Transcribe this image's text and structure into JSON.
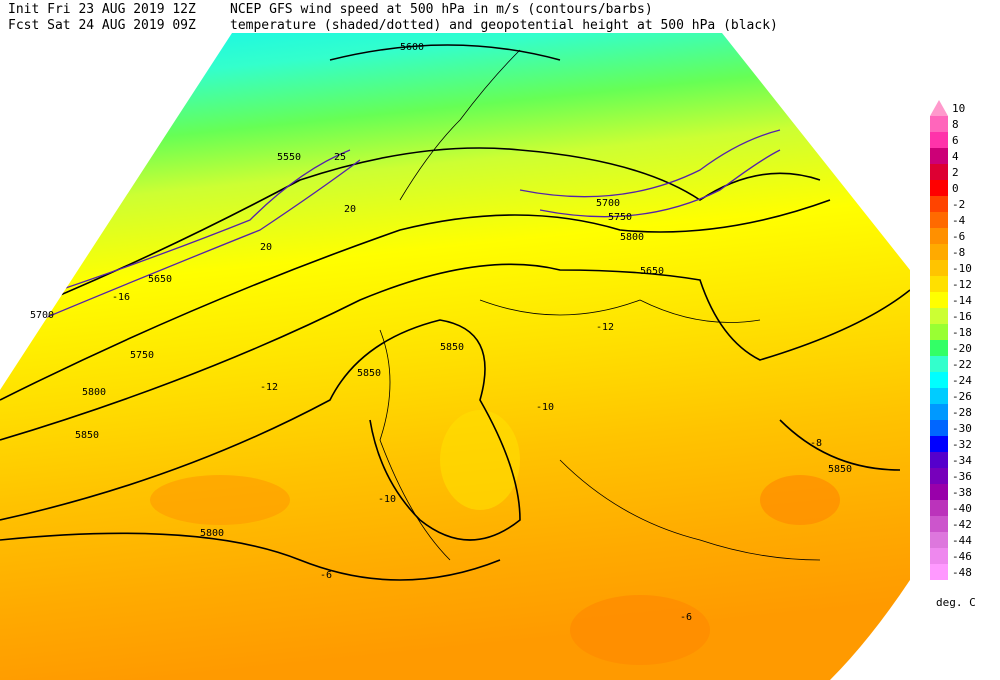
{
  "header": {
    "init": "Init  Fri 23 AUG 2019 12Z",
    "fcst": "Fcst Sat 24 AUG 2019 09Z",
    "line1": "NCEP GFS wind speed at 500 hPa in m/s (contours/barbs)",
    "line2": "temperature (shaded/dotted) and geopotential height at 500 hPa (black)"
  },
  "colorbar": {
    "levels": [
      10,
      8,
      6,
      4,
      2,
      0,
      -2,
      -4,
      -6,
      -8,
      -10,
      -12,
      -14,
      -16,
      -18,
      -20,
      -22,
      -24,
      -26,
      -28,
      -30,
      -32,
      -34,
      -36,
      -38,
      -40,
      -42,
      -44,
      -46,
      -48
    ],
    "colors": [
      "#ff99cc",
      "#ff66bb",
      "#ff33aa",
      "#cc0077",
      "#dd0033",
      "#ff0000",
      "#ff4400",
      "#ff6a00",
      "#ff9000",
      "#ffaa00",
      "#ffc400",
      "#ffe000",
      "#ffff00",
      "#ccff33",
      "#99ff33",
      "#33ff66",
      "#33ffcc",
      "#00ffff",
      "#00ccff",
      "#0099ff",
      "#0066ff",
      "#0000ff",
      "#5500cc",
      "#7700bb",
      "#9900aa",
      "#bb33bb",
      "#cc55cc",
      "#dd77dd",
      "#ee88ee",
      "#ff99ff"
    ],
    "unit": "deg. C"
  },
  "map": {
    "labels": [
      "5600",
      "5550",
      "5650",
      "5700",
      "5750",
      "5800",
      "5850",
      "5850",
      "5850",
      "5800",
      "5650",
      "5700",
      "5750",
      "5800",
      "5850",
      "-16",
      "-12",
      "-10",
      "-8",
      "-6",
      "-6",
      "-12",
      "-10",
      "20",
      "25",
      "20"
    ]
  }
}
